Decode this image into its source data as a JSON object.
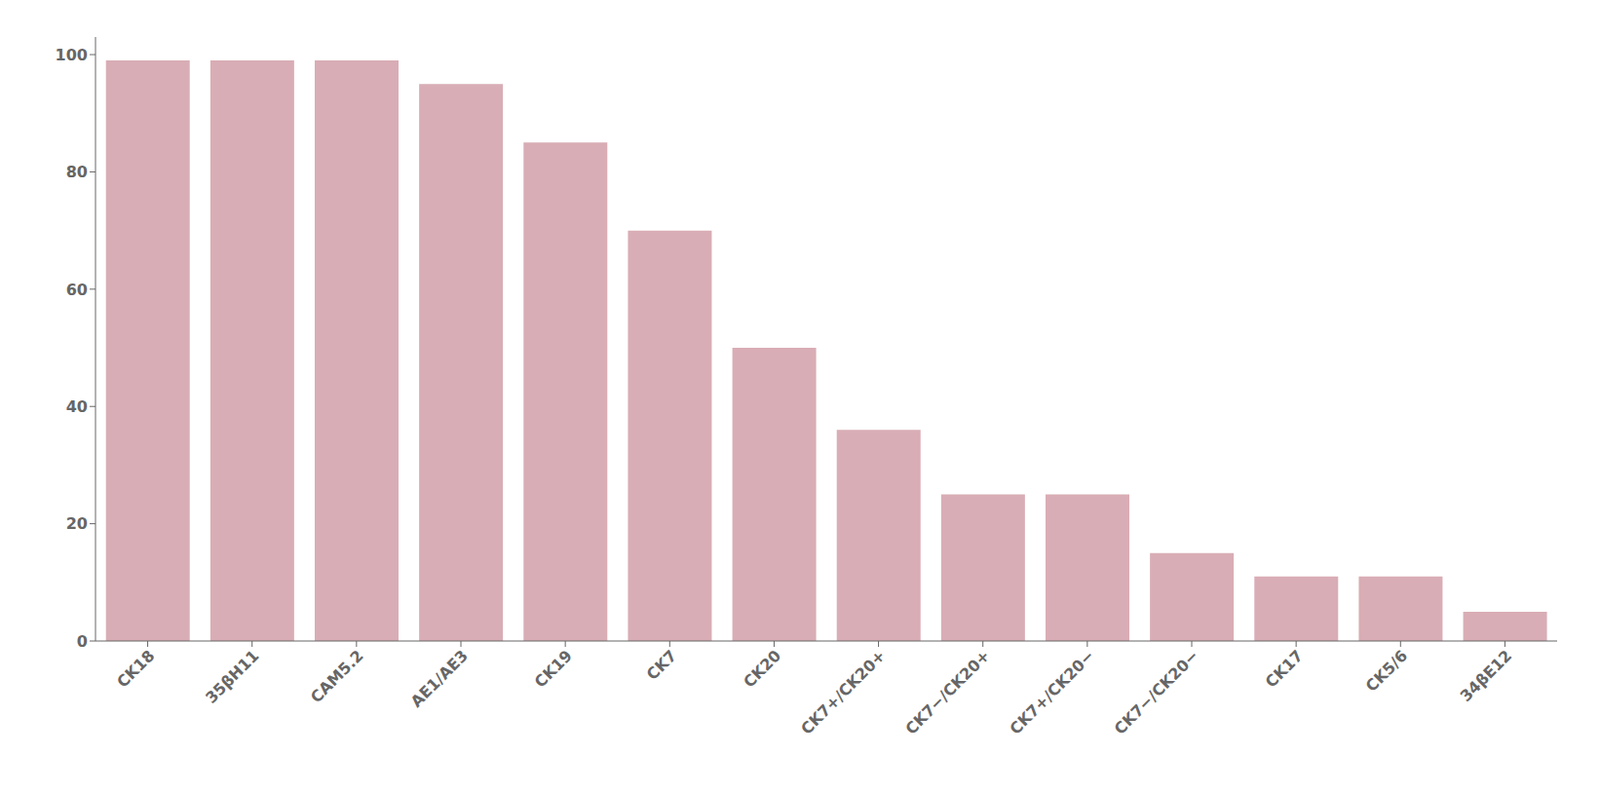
{
  "chart_data": {
    "type": "bar",
    "categories": [
      "CK18",
      "35βH11",
      "CAM5.2",
      "AE1/AE3",
      "CK19",
      "CK7",
      "CK20",
      "CK7+/CK20+",
      "CK7−/CK20+",
      "CK7+/CK20−",
      "CK7−/CK20−",
      "CK17",
      "CK5/6",
      "34βE12"
    ],
    "values": [
      99,
      99,
      99,
      95,
      85,
      70,
      50,
      36,
      25,
      25,
      15,
      11,
      11,
      5
    ],
    "color": "#d9adb5",
    "ylim": [
      0,
      103
    ],
    "yticks": [
      0,
      20,
      40,
      60,
      80,
      100
    ],
    "grid": false
  }
}
